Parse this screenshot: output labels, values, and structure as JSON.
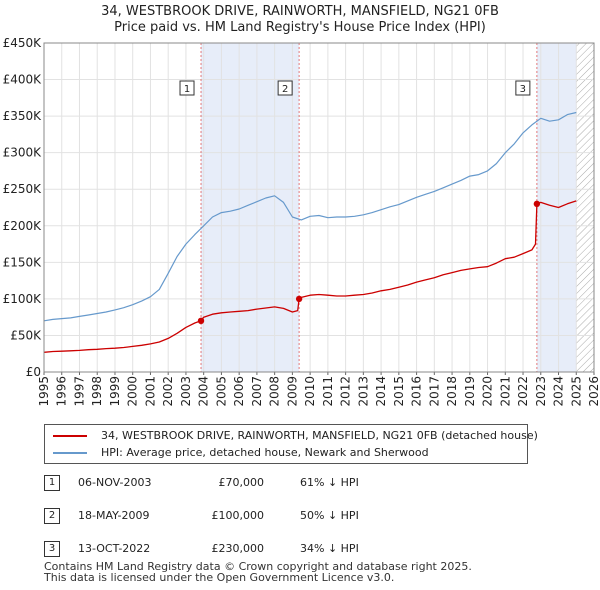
{
  "title": {
    "line1": "34, WESTBROOK DRIVE, RAINWORTH, MANSFIELD, NG21 0FB",
    "line2": "Price paid vs. HM Land Registry's House Price Index (HPI)"
  },
  "chart_data": {
    "type": "line",
    "title": "Price paid vs. HM Land Registry's House Price Index (HPI)",
    "xlabel": "",
    "ylabel": "",
    "xlim": [
      1995,
      2026
    ],
    "ylim": [
      0,
      450000
    ],
    "x_ticks": [
      "1995",
      "1996",
      "1997",
      "1998",
      "1999",
      "2000",
      "2001",
      "2002",
      "2003",
      "2004",
      "2005",
      "2006",
      "2007",
      "2008",
      "2009",
      "2010",
      "2011",
      "2012",
      "2013",
      "2014",
      "2015",
      "2016",
      "2017",
      "2018",
      "2019",
      "2020",
      "2021",
      "2022",
      "2023",
      "2024",
      "2025",
      "2026"
    ],
    "y_ticks": [
      {
        "value": 0,
        "label": "£0"
      },
      {
        "value": 50000,
        "label": "£50K"
      },
      {
        "value": 100000,
        "label": "£100K"
      },
      {
        "value": 150000,
        "label": "£150K"
      },
      {
        "value": 200000,
        "label": "£200K"
      },
      {
        "value": 250000,
        "label": "£250K"
      },
      {
        "value": 300000,
        "label": "£300K"
      },
      {
        "value": 350000,
        "label": "£350K"
      },
      {
        "value": 400000,
        "label": "£400K"
      },
      {
        "value": 450000,
        "label": "£450K"
      }
    ],
    "grid": true,
    "shaded_ranges": [
      {
        "start": 2003.85,
        "end": 2009.38
      },
      {
        "start": 2022.78,
        "end": 2025.0
      },
      {
        "start": 2025.0,
        "end": 2026.0,
        "hatched": true
      }
    ],
    "sale_markers": [
      {
        "label": "1",
        "x": 2003.85,
        "y": 70000
      },
      {
        "label": "2",
        "x": 2009.38,
        "y": 100000
      },
      {
        "label": "3",
        "x": 2022.78,
        "y": 230000
      }
    ],
    "series": [
      {
        "name": "34, WESTBROOK DRIVE, RAINWORTH, MANSFIELD, NG21 0FB (detached house)",
        "color": "#cc0000",
        "x": [
          1995.0,
          1995.5,
          1996.0,
          1996.5,
          1997.0,
          1997.5,
          1998.0,
          1998.5,
          1999.0,
          1999.5,
          2000.0,
          2000.5,
          2001.0,
          2001.5,
          2002.0,
          2002.5,
          2003.0,
          2003.5,
          2003.85,
          2004.0,
          2004.5,
          2005.0,
          2005.5,
          2006.0,
          2006.5,
          2007.0,
          2007.5,
          2008.0,
          2008.5,
          2009.0,
          2009.3,
          2009.38,
          2009.5,
          2010.0,
          2010.5,
          2011.0,
          2011.5,
          2012.0,
          2012.5,
          2013.0,
          2013.5,
          2014.0,
          2014.5,
          2015.0,
          2015.5,
          2016.0,
          2016.5,
          2017.0,
          2017.5,
          2018.0,
          2018.5,
          2019.0,
          2019.5,
          2020.0,
          2020.5,
          2021.0,
          2021.5,
          2022.0,
          2022.5,
          2022.7,
          2022.78,
          2023.0,
          2023.5,
          2024.0,
          2024.5,
          2025.0
        ],
        "y": [
          27000,
          28000,
          28500,
          29000,
          29500,
          30500,
          31000,
          32000,
          32500,
          33500,
          35000,
          36500,
          38500,
          41000,
          46000,
          53000,
          61000,
          67000,
          70000,
          75000,
          79000,
          81000,
          82000,
          83000,
          84000,
          86000,
          87500,
          89000,
          87000,
          82000,
          84000,
          100000,
          102000,
          105000,
          106000,
          105000,
          104000,
          104000,
          105000,
          106000,
          108000,
          111000,
          113000,
          116000,
          119000,
          123000,
          126000,
          129000,
          133000,
          136000,
          139000,
          141000,
          143000,
          144000,
          149000,
          155000,
          157000,
          162000,
          167000,
          175000,
          230000,
          232000,
          228000,
          225000,
          230000,
          234000
        ]
      },
      {
        "name": "HPI: Average price, detached house, Newark and Sherwood",
        "color": "#6699cc",
        "x": [
          1995.0,
          1995.5,
          1996.0,
          1996.5,
          1997.0,
          1997.5,
          1998.0,
          1998.5,
          1999.0,
          1999.5,
          2000.0,
          2000.5,
          2001.0,
          2001.5,
          2002.0,
          2002.5,
          2003.0,
          2003.5,
          2004.0,
          2004.5,
          2005.0,
          2005.5,
          2006.0,
          2006.5,
          2007.0,
          2007.5,
          2008.0,
          2008.5,
          2009.0,
          2009.5,
          2010.0,
          2010.5,
          2011.0,
          2011.5,
          2012.0,
          2012.5,
          2013.0,
          2013.5,
          2014.0,
          2014.5,
          2015.0,
          2015.5,
          2016.0,
          2016.5,
          2017.0,
          2017.5,
          2018.0,
          2018.5,
          2019.0,
          2019.5,
          2020.0,
          2020.5,
          2021.0,
          2021.5,
          2022.0,
          2022.5,
          2023.0,
          2023.5,
          2024.0,
          2024.5,
          2025.0
        ],
        "y": [
          70000,
          72000,
          73000,
          74000,
          76000,
          78000,
          80000,
          82000,
          85000,
          88000,
          92000,
          97000,
          103000,
          113000,
          135000,
          158000,
          175000,
          188000,
          200000,
          212000,
          218000,
          220000,
          223000,
          228000,
          233000,
          238000,
          241000,
          232000,
          212000,
          208000,
          213000,
          214000,
          211000,
          212000,
          212000,
          213000,
          215000,
          218000,
          222000,
          226000,
          229000,
          234000,
          239000,
          243000,
          247000,
          252000,
          257000,
          262000,
          268000,
          270000,
          275000,
          285000,
          300000,
          312000,
          327000,
          338000,
          347000,
          343000,
          345000,
          352000,
          355000
        ]
      }
    ]
  },
  "legend": [
    {
      "label": "34, WESTBROOK DRIVE, RAINWORTH, MANSFIELD, NG21 0FB (detached house)",
      "color": "#cc0000"
    },
    {
      "label": "HPI: Average price, detached house, Newark and Sherwood",
      "color": "#6699cc"
    }
  ],
  "sales": [
    {
      "num": "1",
      "date": "06-NOV-2003",
      "price": "£70,000",
      "hpi": "61% ↓ HPI"
    },
    {
      "num": "2",
      "date": "18-MAY-2009",
      "price": "£100,000",
      "hpi": "50% ↓ HPI"
    },
    {
      "num": "3",
      "date": "13-OCT-2022",
      "price": "£230,000",
      "hpi": "34% ↓ HPI"
    }
  ],
  "footer": {
    "line1": "Contains HM Land Registry data © Crown copyright and database right 2025.",
    "line2": "This data is licensed under the Open Government Licence v3.0."
  }
}
